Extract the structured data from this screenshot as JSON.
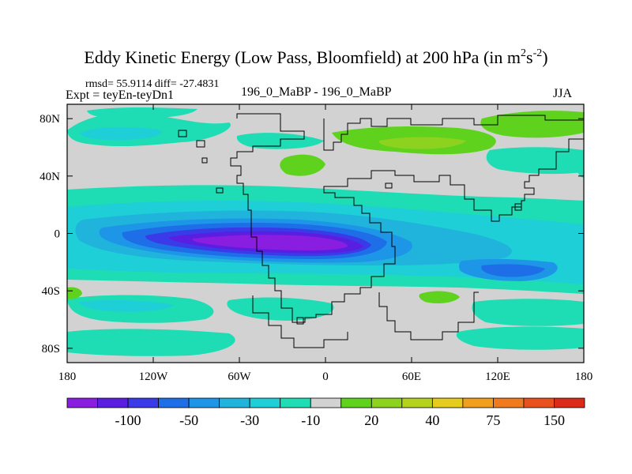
{
  "title": {
    "main": "Eddy Kinetic Energy (Low Pass, Bloomfield) at 200 hPa (in m",
    "sup1": "2",
    "mid": "s",
    "sup2": "-2",
    "close": ")"
  },
  "stats": "rmsd= 55.9114 diff= -27.4831",
  "expt": "Expt = teyEn-teyDn1",
  "case_label": "196_0_MaBP - 196_0_MaBP",
  "season": "JJA",
  "chart_data": {
    "type": "heatmap",
    "title": "Eddy Kinetic Energy (Low Pass, Bloomfield) at 200 hPa (in m2s-2)",
    "x_ticks": [
      {
        "v": -180,
        "label": "180"
      },
      {
        "v": -120,
        "label": "120W"
      },
      {
        "v": -60,
        "label": "60W"
      },
      {
        "v": 0,
        "label": "0"
      },
      {
        "v": 60,
        "label": "60E"
      },
      {
        "v": 120,
        "label": "120E"
      },
      {
        "v": 180,
        "label": "180"
      }
    ],
    "y_ticks": [
      {
        "v": 80,
        "label": "80N"
      },
      {
        "v": 40,
        "label": "40N"
      },
      {
        "v": 0,
        "label": "0"
      },
      {
        "v": -40,
        "label": "40S"
      },
      {
        "v": -80,
        "label": "80S"
      }
    ],
    "xlim": [
      -180,
      180
    ],
    "ylim": [
      -90,
      90
    ],
    "colorbar": {
      "colors": [
        "#8a1ee0",
        "#5a1ee0",
        "#3a3ae8",
        "#1e6ee8",
        "#1e96e8",
        "#20b4dc",
        "#1ecfd8",
        "#1edcb4",
        "#d2d2d2",
        "#5fd21e",
        "#8cd21e",
        "#b4d21e",
        "#e6cc1e",
        "#f0a01e",
        "#f07a1e",
        "#e8501e",
        "#dc2a1a"
      ],
      "labels": [
        {
          "after_index": 1,
          "text": "-100"
        },
        {
          "after_index": 3,
          "text": "-50"
        },
        {
          "after_index": 5,
          "text": "-30"
        },
        {
          "after_index": 7,
          "text": "-10"
        },
        {
          "after_index": 9,
          "text": "20"
        },
        {
          "after_index": 11,
          "text": "40"
        },
        {
          "after_index": 13,
          "text": "75"
        },
        {
          "after_index": 15,
          "text": "150"
        }
      ]
    },
    "field_colors": {
      "background": "#d2d2d2",
      "c_m10": "#1edcb4",
      "c_m20": "#1ecfd8",
      "c_m30": "#20b4dc",
      "c_m40": "#1e96e8",
      "c_m50": "#1e6ee8",
      "c_m75": "#3a3ae8",
      "c_m100": "#5a1ee0",
      "c_m150": "#8a1ee0",
      "c_p10": "#5fd21e",
      "c_p20": "#8cd21e",
      "c_p30": "#b4d21e"
    }
  }
}
